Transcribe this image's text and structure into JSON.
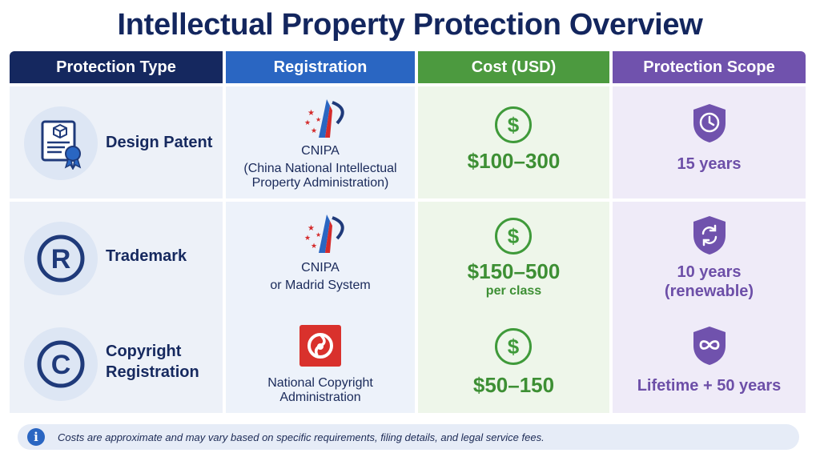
{
  "title": "Intellectual Property Protection Overview",
  "headers": [
    "Protection Type",
    "Registration",
    "Cost (USD)",
    "Protection Scope"
  ],
  "rows": [
    {
      "type": "Design Patent",
      "type_icon": "certificate-icon",
      "reg_main": "CNIPA",
      "reg_sub": "(China National Intellectual Property Administration)",
      "reg_logo": "cnipa-logo",
      "cost": "$100–300",
      "cost_note": "",
      "scope": "15 years",
      "scope_icon": "clock-shield-icon"
    },
    {
      "type": "Trademark",
      "type_icon": "registered-icon",
      "reg_main": "CNIPA",
      "reg_sub": "or Madrid System",
      "reg_logo": "cnipa-logo",
      "cost": "$150–500",
      "cost_note": "per class",
      "scope": "10 years (renewable)",
      "scope_icon": "refresh-shield-icon"
    },
    {
      "type": "Copyright Registration",
      "type_icon": "copyright-icon",
      "reg_main": "National Copyright Administration",
      "reg_sub": "",
      "reg_logo": "ncac-logo",
      "cost": "$50–150",
      "cost_note": "",
      "scope": "Lifetime + 50 years",
      "scope_icon": "infinity-shield-icon"
    }
  ],
  "footnote": "Costs are approximate and may vary based on specific requirements, filing details, and legal service fees.",
  "colors": {
    "title": "#13265e",
    "header_type": "#15285f",
    "header_registration": "#2a66c2",
    "header_cost": "#4c9a3f",
    "header_scope": "#7052ad"
  }
}
